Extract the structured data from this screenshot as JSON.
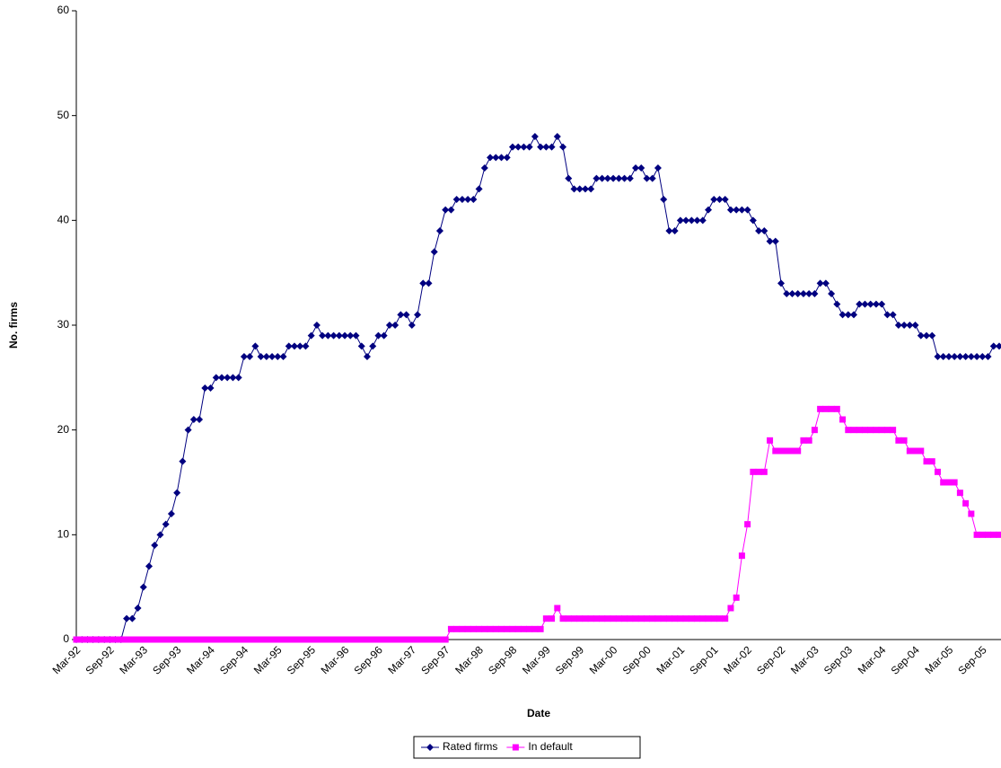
{
  "chart_data": {
    "type": "line",
    "x_label": "Date",
    "y_label": "No. firms",
    "categories": [
      "Mar-92",
      null,
      null,
      null,
      null,
      null,
      "Sep-92",
      null,
      null,
      null,
      null,
      null,
      "Mar-93",
      null,
      null,
      null,
      null,
      null,
      "Sep-93",
      null,
      null,
      null,
      null,
      null,
      "Mar-94",
      null,
      null,
      null,
      null,
      null,
      "Sep-94",
      null,
      null,
      null,
      null,
      null,
      "Mar-95",
      null,
      null,
      null,
      null,
      null,
      "Sep-95",
      null,
      null,
      null,
      null,
      null,
      "Mar-96",
      null,
      null,
      null,
      null,
      null,
      "Sep-96",
      null,
      null,
      null,
      null,
      null,
      "Mar-97",
      null,
      null,
      null,
      null,
      null,
      "Sep-97",
      null,
      null,
      null,
      null,
      null,
      "Mar-98",
      null,
      null,
      null,
      null,
      null,
      "Sep-98",
      null,
      null,
      null,
      null,
      null,
      "Mar-99",
      null,
      null,
      null,
      null,
      null,
      "Sep-99",
      null,
      null,
      null,
      null,
      null,
      "Mar-00",
      null,
      null,
      null,
      null,
      null,
      "Sep-00",
      null,
      null,
      null,
      null,
      null,
      "Mar-01",
      null,
      null,
      null,
      null,
      null,
      "Sep-01",
      null,
      null,
      null,
      null,
      null,
      "Mar-02",
      null,
      null,
      null,
      null,
      null,
      "Sep-02",
      null,
      null,
      null,
      null,
      null,
      "Mar-03",
      null,
      null,
      null,
      null,
      null,
      "Sep-03",
      null,
      null,
      null,
      null,
      null,
      "Mar-04",
      null,
      null,
      null,
      null,
      null,
      "Sep-04",
      null,
      null,
      null,
      null,
      null,
      "Mar-05",
      null,
      null,
      null,
      null,
      null,
      "Sep-05",
      null,
      null,
      null
    ],
    "series": [
      {
        "name": "Rated firms",
        "color": "#000080",
        "marker": "diamond",
        "values": [
          0,
          0,
          0,
          0,
          0,
          0,
          0,
          0,
          0,
          2,
          2,
          3,
          5,
          7,
          9,
          10,
          11,
          12,
          14,
          17,
          20,
          21,
          21,
          24,
          24,
          25,
          25,
          25,
          25,
          25,
          27,
          27,
          28,
          27,
          27,
          27,
          27,
          27,
          28,
          28,
          28,
          28,
          29,
          30,
          29,
          29,
          29,
          29,
          29,
          29,
          29,
          28,
          27,
          28,
          29,
          29,
          30,
          30,
          31,
          31,
          30,
          31,
          34,
          34,
          37,
          39,
          41,
          41,
          42,
          42,
          42,
          42,
          43,
          45,
          46,
          46,
          46,
          46,
          47,
          47,
          47,
          47,
          48,
          47,
          47,
          47,
          48,
          47,
          44,
          43,
          43,
          43,
          43,
          44,
          44,
          44,
          44,
          44,
          44,
          44,
          45,
          45,
          44,
          44,
          45,
          42,
          39,
          39,
          40,
          40,
          40,
          40,
          40,
          41,
          42,
          42,
          42,
          41,
          41,
          41,
          41,
          40,
          39,
          39,
          38,
          38,
          34,
          33,
          33,
          33,
          33,
          33,
          33,
          34,
          34,
          33,
          32,
          31,
          31,
          31,
          32,
          32,
          32,
          32,
          32,
          31,
          31,
          30,
          30,
          30,
          30,
          29,
          29,
          29,
          27,
          27,
          27,
          27,
          27,
          27,
          27,
          27,
          27,
          27,
          28,
          28
        ]
      },
      {
        "name": "In default",
        "color": "#ff00ff",
        "marker": "square",
        "values": [
          0,
          0,
          0,
          0,
          0,
          0,
          0,
          0,
          0,
          0,
          0,
          0,
          0,
          0,
          0,
          0,
          0,
          0,
          0,
          0,
          0,
          0,
          0,
          0,
          0,
          0,
          0,
          0,
          0,
          0,
          0,
          0,
          0,
          0,
          0,
          0,
          0,
          0,
          0,
          0,
          0,
          0,
          0,
          0,
          0,
          0,
          0,
          0,
          0,
          0,
          0,
          0,
          0,
          0,
          0,
          0,
          0,
          0,
          0,
          0,
          0,
          0,
          0,
          0,
          0,
          0,
          0,
          1,
          1,
          1,
          1,
          1,
          1,
          1,
          1,
          1,
          1,
          1,
          1,
          1,
          1,
          1,
          1,
          1,
          2,
          2,
          3,
          2,
          2,
          2,
          2,
          2,
          2,
          2,
          2,
          2,
          2,
          2,
          2,
          2,
          2,
          2,
          2,
          2,
          2,
          2,
          2,
          2,
          2,
          2,
          2,
          2,
          2,
          2,
          2,
          2,
          2,
          3,
          4,
          8,
          11,
          16,
          16,
          16,
          19,
          18,
          18,
          18,
          18,
          18,
          19,
          19,
          20,
          22,
          22,
          22,
          22,
          21,
          20,
          20,
          20,
          20,
          20,
          20,
          20,
          20,
          20,
          19,
          19,
          18,
          18,
          18,
          17,
          17,
          16,
          15,
          15,
          15,
          14,
          13,
          12,
          10,
          10,
          10,
          10,
          10
        ]
      }
    ],
    "ylim": [
      0,
      60
    ],
    "yticks": [
      0,
      10,
      20,
      30,
      40,
      50,
      60
    ],
    "grid": false,
    "legend": "bottom"
  }
}
